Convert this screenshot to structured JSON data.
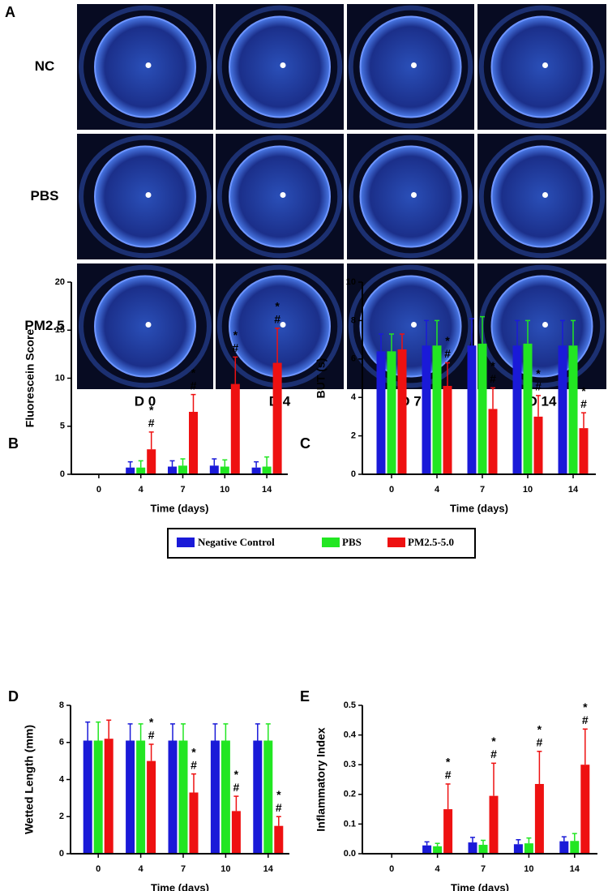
{
  "panel_a": {
    "label": "A",
    "rows": [
      "NC",
      "PBS",
      "PM2.5"
    ],
    "columns": [
      "D 0",
      "D 4",
      "D 7",
      "D 14"
    ]
  },
  "chart_data": [
    {
      "type": "bar",
      "panel_label": "B",
      "ylabel": "Fluorescein Score",
      "xlabel": "Time (days)",
      "categories": [
        "0",
        "4",
        "7",
        "10",
        "14"
      ],
      "ylim": [
        0,
        20
      ],
      "yticks": [
        0,
        5,
        10,
        15,
        20
      ],
      "series": [
        {
          "name": "Negative Control",
          "color": "#1a1ad8",
          "values": [
            0,
            0.7,
            0.8,
            0.9,
            0.7
          ],
          "errors": [
            0,
            0.6,
            0.6,
            0.7,
            0.6
          ]
        },
        {
          "name": "PBS",
          "color": "#22e622",
          "values": [
            0,
            0.7,
            0.9,
            0.8,
            0.8
          ],
          "errors": [
            0,
            0.7,
            0.7,
            0.7,
            1.0
          ]
        },
        {
          "name": "PM2.5-5.0",
          "color": "#ee1111",
          "values": [
            0,
            2.6,
            6.5,
            9.4,
            11.6
          ],
          "errors": [
            0,
            1.8,
            1.8,
            2.8,
            3.6
          ],
          "annotations": [
            null,
            [
              "*",
              "#"
            ],
            [
              "*",
              "#"
            ],
            [
              "*",
              "#"
            ],
            [
              "*",
              "#"
            ]
          ]
        }
      ]
    },
    {
      "type": "bar",
      "panel_label": "C",
      "ylabel": "BUT (s)",
      "xlabel": "Time (days)",
      "categories": [
        "0",
        "4",
        "7",
        "10",
        "14"
      ],
      "ylim": [
        0,
        10
      ],
      "yticks": [
        0,
        2,
        4,
        6,
        8,
        10
      ],
      "series": [
        {
          "name": "Negative Control",
          "color": "#1a1ad8",
          "values": [
            6.4,
            6.7,
            6.7,
            6.7,
            6.7
          ],
          "errors": [
            0.9,
            1.3,
            1.4,
            1.3,
            1.3
          ]
        },
        {
          "name": "PBS",
          "color": "#22e622",
          "values": [
            6.4,
            6.7,
            6.8,
            6.8,
            6.7
          ],
          "errors": [
            0.9,
            1.3,
            1.4,
            1.2,
            1.3
          ]
        },
        {
          "name": "PM2.5-5.0",
          "color": "#ee1111",
          "values": [
            6.5,
            4.6,
            3.4,
            3.0,
            2.4
          ],
          "errors": [
            0.8,
            1.2,
            1.1,
            1.1,
            0.8
          ],
          "annotations": [
            null,
            [
              "*",
              "#"
            ],
            [
              "*",
              "#"
            ],
            [
              "*",
              "#"
            ],
            [
              "*",
              "#"
            ]
          ]
        }
      ]
    },
    {
      "type": "bar",
      "panel_label": "D",
      "ylabel": "Wetted Length (mm)",
      "xlabel": "Time (days)",
      "categories": [
        "0",
        "4",
        "7",
        "10",
        "14"
      ],
      "ylim": [
        0,
        8
      ],
      "yticks": [
        0,
        2,
        4,
        6,
        8
      ],
      "series": [
        {
          "name": "Negative Control",
          "color": "#1a1ad8",
          "values": [
            6.1,
            6.1,
            6.1,
            6.1,
            6.1
          ],
          "errors": [
            1.0,
            0.9,
            0.9,
            0.9,
            0.9
          ]
        },
        {
          "name": "PBS",
          "color": "#22e622",
          "values": [
            6.1,
            6.1,
            6.1,
            6.1,
            6.1
          ],
          "errors": [
            1.0,
            0.9,
            0.9,
            0.9,
            0.9
          ]
        },
        {
          "name": "PM2.5-5.0",
          "color": "#ee1111",
          "values": [
            6.2,
            5.0,
            3.3,
            2.3,
            1.5
          ],
          "errors": [
            1.0,
            0.9,
            1.0,
            0.8,
            0.5
          ],
          "annotations": [
            null,
            [
              "*",
              "#"
            ],
            [
              "*",
              "#"
            ],
            [
              "*",
              "#"
            ],
            [
              "*",
              "#"
            ]
          ]
        }
      ]
    },
    {
      "type": "bar",
      "panel_label": "E",
      "ylabel": "Inflammatory Index",
      "xlabel": "Time (days)",
      "categories": [
        "0",
        "4",
        "7",
        "10",
        "14"
      ],
      "ylim": [
        0,
        0.5
      ],
      "yticks": [
        {
          "value": 0,
          "label": "0.0"
        },
        0.1,
        0.2,
        0.3,
        0.4,
        0.5
      ],
      "series": [
        {
          "name": "Negative Control",
          "color": "#1a1ad8",
          "values": [
            0,
            0.028,
            0.038,
            0.032,
            0.042
          ],
          "errors": [
            0,
            0.012,
            0.017,
            0.015,
            0.015
          ]
        },
        {
          "name": "PBS",
          "color": "#22e622",
          "values": [
            0,
            0.025,
            0.03,
            0.035,
            0.043
          ],
          "errors": [
            0,
            0.01,
            0.015,
            0.018,
            0.025
          ]
        },
        {
          "name": "PM2.5-5.0",
          "color": "#ee1111",
          "values": [
            0,
            0.15,
            0.195,
            0.235,
            0.3
          ],
          "errors": [
            0,
            0.085,
            0.11,
            0.11,
            0.12
          ],
          "annotations": [
            null,
            [
              "*",
              "#"
            ],
            [
              "*",
              "#"
            ],
            [
              "*",
              "#"
            ],
            [
              "*",
              "#"
            ]
          ]
        }
      ]
    }
  ]
}
